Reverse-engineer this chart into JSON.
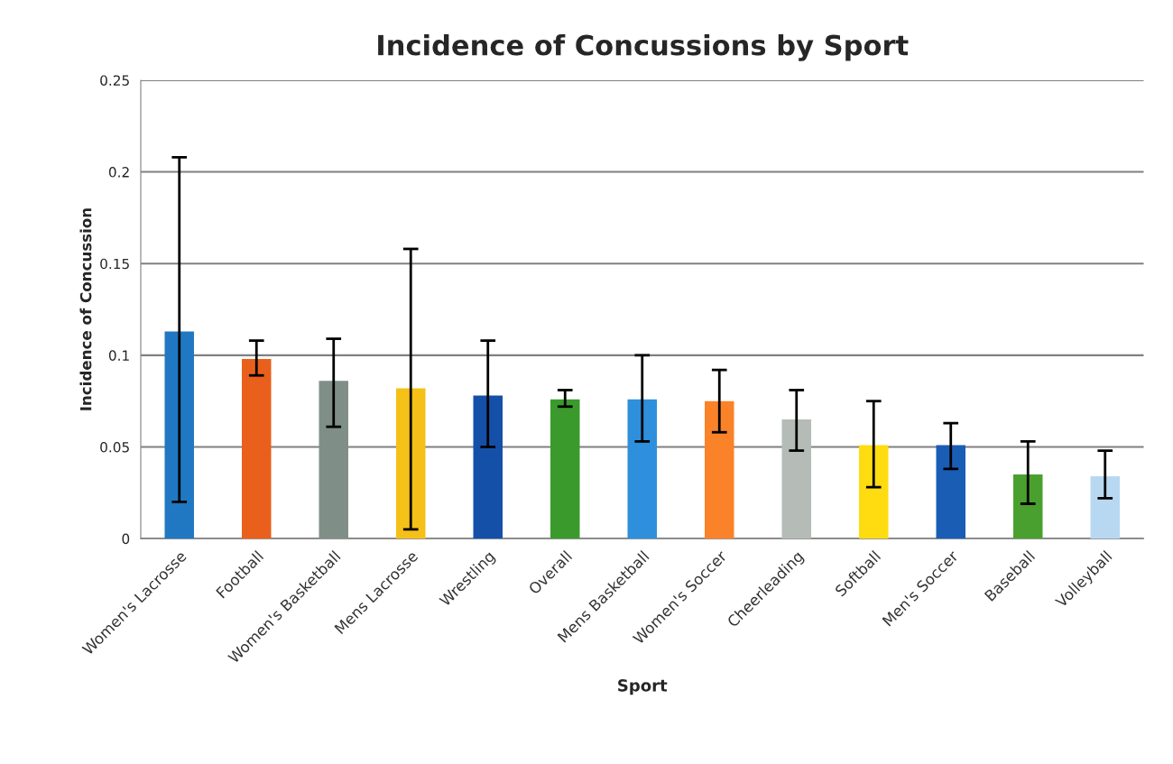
{
  "chart_data": {
    "type": "bar",
    "title": "Incidence of Concussions by Sport",
    "xlabel": "Sport",
    "ylabel": "Incidence of Concussion",
    "categories": [
      "Women's Lacrosse",
      "Football",
      "Women's Basketball",
      "Mens Lacrosse",
      "Wrestling",
      "Overall",
      "Mens Basketball",
      "Women's Soccer",
      "Cheerleading",
      "Softball",
      "Men's Soccer",
      "Baseball",
      "Volleyball"
    ],
    "values": [
      0.113,
      0.098,
      0.086,
      0.082,
      0.078,
      0.076,
      0.076,
      0.075,
      0.065,
      0.051,
      0.051,
      0.035,
      0.034
    ],
    "errors": [
      [
        0.02,
        0.208
      ],
      [
        0.089,
        0.108
      ],
      [
        0.061,
        0.109
      ],
      [
        0.005,
        0.158
      ],
      [
        0.05,
        0.108
      ],
      [
        0.072,
        0.081
      ],
      [
        0.053,
        0.1
      ],
      [
        0.058,
        0.092
      ],
      [
        0.048,
        0.081
      ],
      [
        0.028,
        0.075
      ],
      [
        0.038,
        0.063
      ],
      [
        0.019,
        0.053
      ],
      [
        0.022,
        0.048
      ]
    ],
    "colors": [
      "#1f78c1",
      "#e8601c",
      "#7f8f88",
      "#f5c018",
      "#1550a8",
      "#3a9a2c",
      "#2e8fdc",
      "#fa8228",
      "#b5bcb8",
      "#ffdc10",
      "#1a5db5",
      "#4aa02e",
      "#b8d8f2"
    ],
    "ylim": [
      0,
      0.25
    ],
    "yticks": [
      {
        "value": 0,
        "label": "0"
      },
      0.05,
      0.1,
      0.15,
      0.2,
      0.25
    ],
    "grid": "y",
    "legend": false
  }
}
